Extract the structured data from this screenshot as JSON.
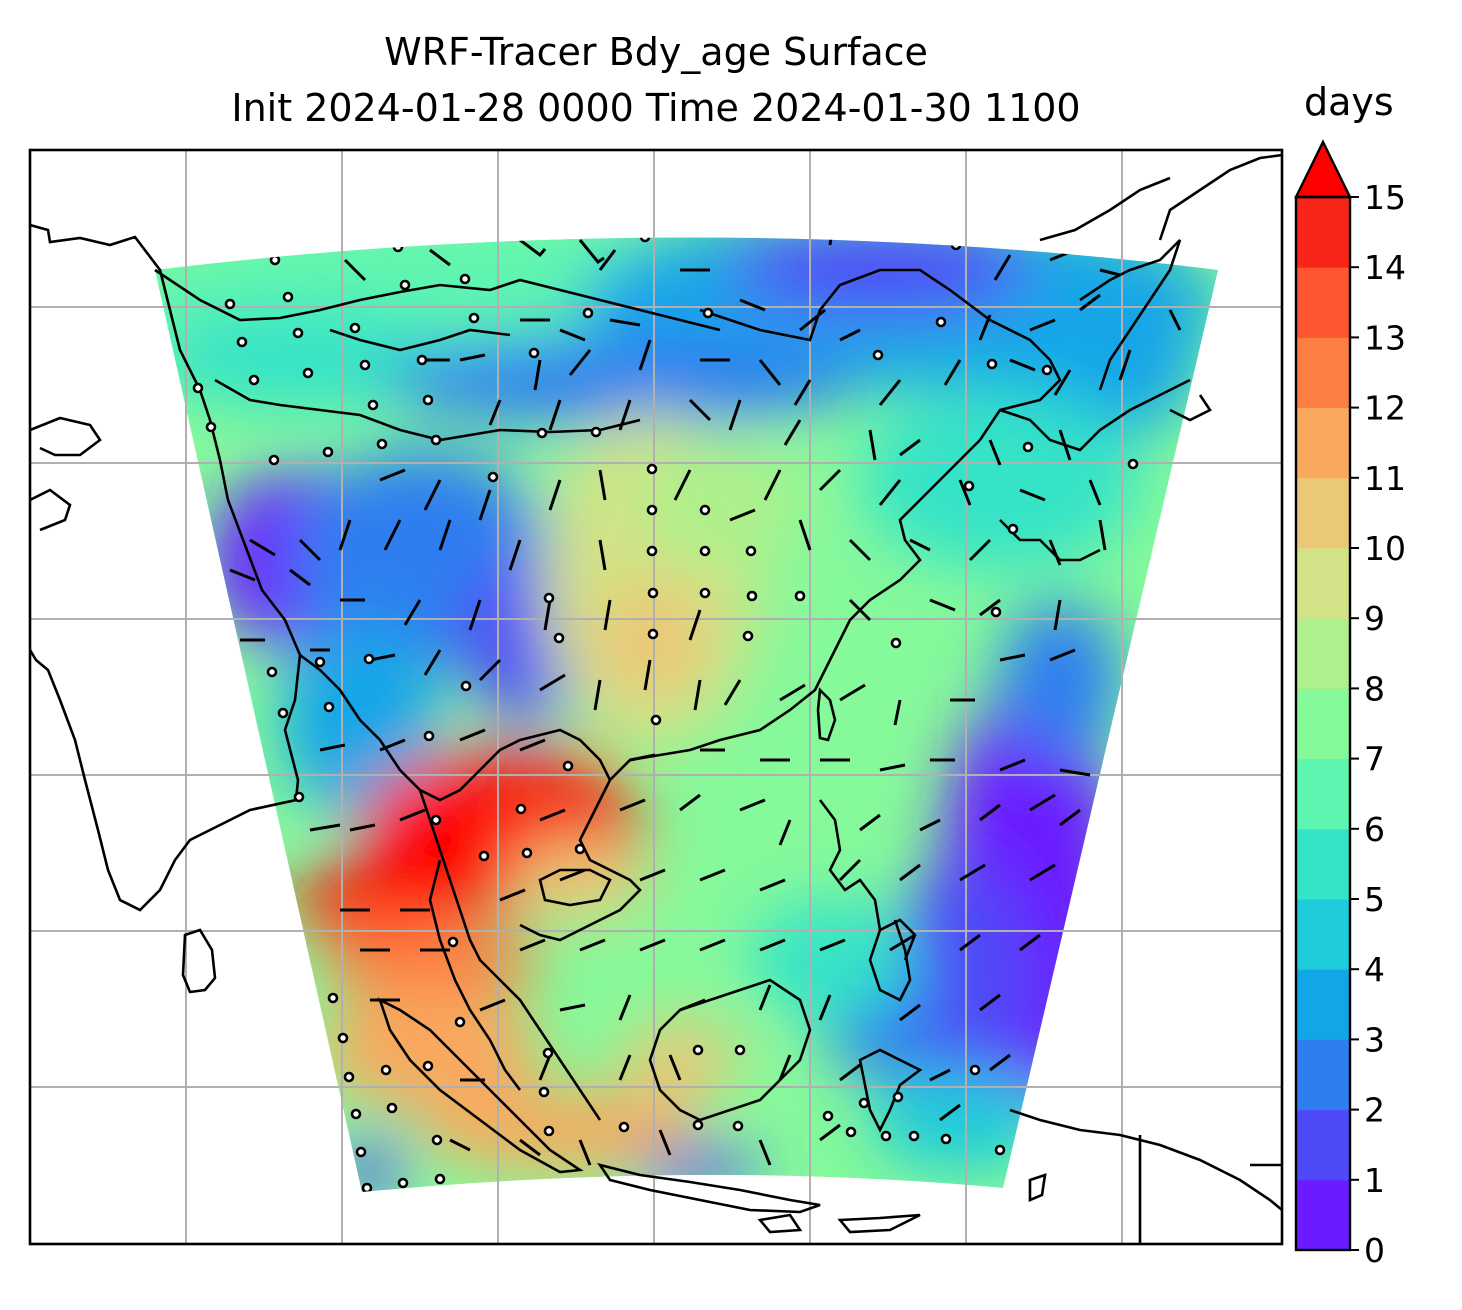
{
  "title": "WRF-Tracer Bdy_age Surface",
  "subtitle": "Init 2024-01-28 0000 Time 2024-01-30 1100",
  "colorbar": {
    "unit_label": "days",
    "ticks": [
      "0",
      "1",
      "2",
      "3",
      "4",
      "5",
      "6",
      "7",
      "8",
      "9",
      "10",
      "11",
      "12",
      "13",
      "14",
      "15"
    ],
    "extend": "max",
    "colors": [
      "#6a1bff",
      "#4f4af7",
      "#2f7ef0",
      "#12a6e8",
      "#1dcbdb",
      "#35e3c7",
      "#5ef5b0",
      "#86f99b",
      "#aef08b",
      "#d1e386",
      "#eac878",
      "#f9a95e",
      "#fd7f43",
      "#fe5630",
      "#f72618",
      "#ff0000"
    ]
  },
  "map": {
    "field_name": "Bdy_age",
    "level": "Surface",
    "gridlines": true,
    "coastlines": true,
    "wind_barbs": true
  }
}
